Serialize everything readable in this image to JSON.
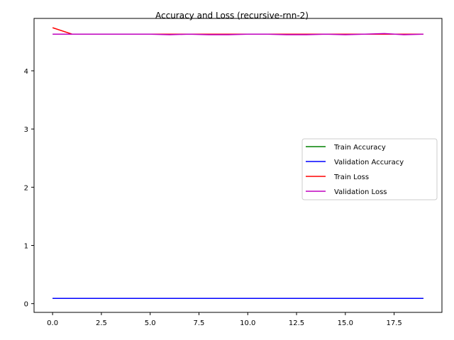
{
  "chart_data": {
    "type": "line",
    "title": "Accuracy and Loss (recursive-rnn-2)",
    "xlabel": "",
    "ylabel": "",
    "xlim": [
      -0.95,
      19.95
    ],
    "ylim": [
      -0.15,
      4.9
    ],
    "xticks": [
      0.0,
      2.5,
      5.0,
      7.5,
      10.0,
      12.5,
      15.0,
      17.5
    ],
    "xtick_labels": [
      "0.0",
      "2.5",
      "5.0",
      "7.5",
      "10.0",
      "12.5",
      "15.0",
      "17.5"
    ],
    "yticks": [
      0,
      1,
      2,
      3,
      4
    ],
    "ytick_labels": [
      "0",
      "1",
      "2",
      "3",
      "4"
    ],
    "grid": false,
    "legend_position": "center-right",
    "x": [
      0,
      1,
      2,
      3,
      4,
      5,
      6,
      7,
      8,
      9,
      10,
      11,
      12,
      13,
      14,
      15,
      16,
      17,
      18,
      19
    ],
    "series": [
      {
        "name": "Train Accuracy",
        "color": "#008000",
        "values": [
          0.09,
          0.09,
          0.09,
          0.09,
          0.09,
          0.09,
          0.09,
          0.09,
          0.09,
          0.09,
          0.09,
          0.09,
          0.09,
          0.09,
          0.09,
          0.09,
          0.09,
          0.09,
          0.09,
          0.09
        ]
      },
      {
        "name": "Validation Accuracy",
        "color": "#0000ff",
        "values": [
          0.09,
          0.09,
          0.09,
          0.09,
          0.09,
          0.09,
          0.09,
          0.09,
          0.09,
          0.09,
          0.09,
          0.09,
          0.09,
          0.09,
          0.09,
          0.09,
          0.09,
          0.09,
          0.09,
          0.09
        ]
      },
      {
        "name": "Train Loss",
        "color": "#ff0000",
        "values": [
          4.74,
          4.63,
          4.63,
          4.63,
          4.63,
          4.63,
          4.63,
          4.63,
          4.63,
          4.63,
          4.63,
          4.63,
          4.63,
          4.63,
          4.63,
          4.63,
          4.63,
          4.63,
          4.63,
          4.63
        ]
      },
      {
        "name": "Validation Loss",
        "color": "#bf00bf",
        "values": [
          4.63,
          4.63,
          4.63,
          4.63,
          4.63,
          4.63,
          4.62,
          4.63,
          4.62,
          4.62,
          4.63,
          4.63,
          4.62,
          4.62,
          4.63,
          4.62,
          4.63,
          4.64,
          4.62,
          4.63
        ]
      }
    ]
  }
}
